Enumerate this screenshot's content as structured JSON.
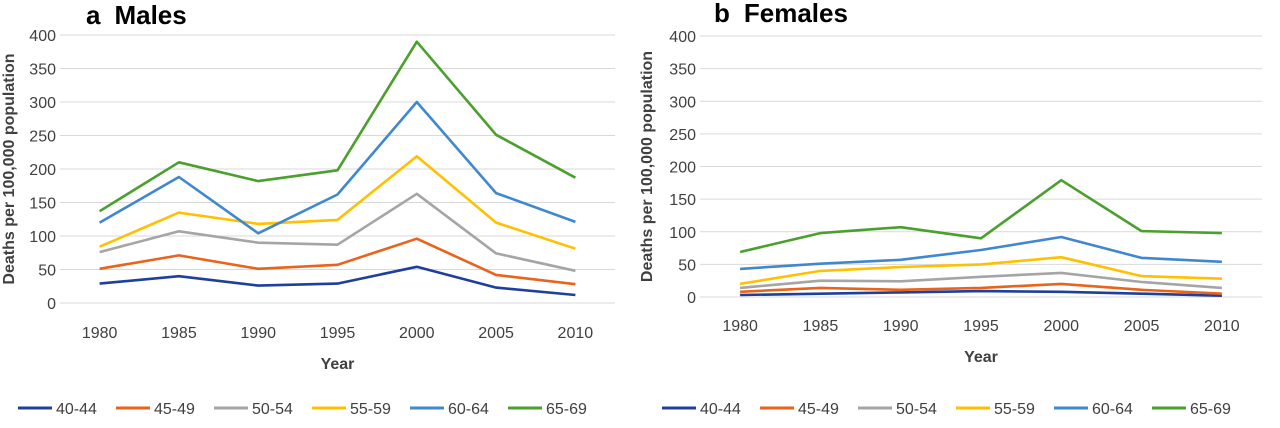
{
  "chart_data": [
    {
      "type": "line",
      "panel_label": "a",
      "title": "Males",
      "xlabel": "Year",
      "ylabel": "Deaths per 100,000 population",
      "categories": [
        "1980",
        "1985",
        "1990",
        "1995",
        "2000",
        "2005",
        "2010"
      ],
      "ylim": [
        0,
        400
      ],
      "yticks": [
        "0",
        "50",
        "100",
        "150",
        "200",
        "250",
        "300",
        "350",
        "400"
      ],
      "grid": true,
      "legend_position": "bottom",
      "series": [
        {
          "name": "40-44",
          "color": "#1f3f9c",
          "values": [
            29,
            40,
            26,
            29,
            54,
            23,
            12
          ]
        },
        {
          "name": "45-49",
          "color": "#e8641b",
          "values": [
            51,
            71,
            51,
            57,
            96,
            42,
            28
          ]
        },
        {
          "name": "50-54",
          "color": "#a5a5a5",
          "values": [
            76,
            107,
            90,
            87,
            163,
            74,
            48
          ]
        },
        {
          "name": "55-59",
          "color": "#ffc000",
          "values": [
            84,
            135,
            118,
            124,
            219,
            120,
            81
          ]
        },
        {
          "name": "60-64",
          "color": "#3f88cf",
          "values": [
            120,
            188,
            104,
            162,
            300,
            164,
            121
          ]
        },
        {
          "name": "65-69",
          "color": "#4aa02c",
          "values": [
            137,
            210,
            182,
            198,
            390,
            251,
            187
          ]
        }
      ]
    },
    {
      "type": "line",
      "panel_label": "b",
      "title": "Females",
      "xlabel": "Year",
      "ylabel": "Deaths per 100,000 population",
      "categories": [
        "1980",
        "1985",
        "1990",
        "1995",
        "2000",
        "2005",
        "2010"
      ],
      "ylim": [
        0,
        400
      ],
      "yticks": [
        "0",
        "50",
        "100",
        "150",
        "200",
        "250",
        "300",
        "350",
        "400"
      ],
      "grid": true,
      "legend_position": "bottom",
      "series": [
        {
          "name": "40-44",
          "color": "#1f3f9c",
          "values": [
            3,
            5,
            7,
            9,
            8,
            5,
            2
          ]
        },
        {
          "name": "45-49",
          "color": "#e8641b",
          "values": [
            8,
            14,
            11,
            14,
            20,
            11,
            5
          ]
        },
        {
          "name": "50-54",
          "color": "#a5a5a5",
          "values": [
            14,
            25,
            24,
            31,
            37,
            23,
            14
          ]
        },
        {
          "name": "55-59",
          "color": "#ffc000",
          "values": [
            20,
            40,
            46,
            50,
            61,
            32,
            28
          ]
        },
        {
          "name": "60-64",
          "color": "#3f88cf",
          "values": [
            43,
            51,
            57,
            72,
            92,
            60,
            54
          ]
        },
        {
          "name": "65-69",
          "color": "#4aa02c",
          "values": [
            69,
            98,
            107,
            90,
            179,
            101,
            98
          ]
        }
      ]
    }
  ]
}
